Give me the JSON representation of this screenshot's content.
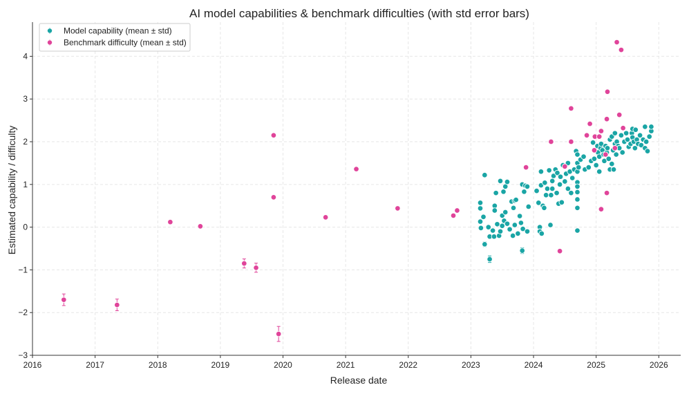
{
  "chart_data": {
    "type": "scatter",
    "title": "AI model capabilities & benchmark difficulties (with std error bars)",
    "xlabel": "Release date",
    "ylabel": "Estimated capability / difficulty",
    "xlim": [
      2016,
      2026.35
    ],
    "ylim": [
      -3,
      4.8
    ],
    "xticks": [
      2016,
      2017,
      2018,
      2019,
      2020,
      2021,
      2022,
      2023,
      2024,
      2025,
      2026
    ],
    "xtick_labels": [
      "2016",
      "2017",
      "2018",
      "2019",
      "2020",
      "2021",
      "2022",
      "2023",
      "2024",
      "2025",
      "2026"
    ],
    "yticks": [
      -3,
      -2,
      -1,
      0,
      1,
      2,
      3,
      4
    ],
    "ytick_labels": [
      "−3",
      "−2",
      "−1",
      "0",
      "1",
      "2",
      "3",
      "4"
    ],
    "grid": true,
    "legend_position": "top-left",
    "series": [
      {
        "name": "Model capability (mean ± std)",
        "color": "#1aa5a5",
        "points": [
          {
            "x": 2023.15,
            "y": 0.57,
            "err": 0.02
          },
          {
            "x": 2023.15,
            "y": 0.44,
            "err": 0.02
          },
          {
            "x": 2023.15,
            "y": 0.13,
            "err": 0.02
          },
          {
            "x": 2023.16,
            "y": -0.02,
            "err": 0.02
          },
          {
            "x": 2023.22,
            "y": 1.22,
            "err": 0.02
          },
          {
            "x": 2023.22,
            "y": -0.4,
            "err": 0.04
          },
          {
            "x": 2023.2,
            "y": 0.24,
            "err": 0.02
          },
          {
            "x": 2023.28,
            "y": 0.0,
            "err": 0.02
          },
          {
            "x": 2023.3,
            "y": -0.75,
            "err": 0.06
          },
          {
            "x": 2023.3,
            "y": -0.22,
            "err": 0.02
          },
          {
            "x": 2023.35,
            "y": -0.08,
            "err": 0.02
          },
          {
            "x": 2023.37,
            "y": -0.22,
            "err": 0.02
          },
          {
            "x": 2023.38,
            "y": 0.5,
            "err": 0.02
          },
          {
            "x": 2023.38,
            "y": 0.39,
            "err": 0.02
          },
          {
            "x": 2023.4,
            "y": 0.8,
            "err": 0.02
          },
          {
            "x": 2023.42,
            "y": 0.07,
            "err": 0.02
          },
          {
            "x": 2023.45,
            "y": -0.2,
            "err": 0.02
          },
          {
            "x": 2023.47,
            "y": 1.08,
            "err": 0.02
          },
          {
            "x": 2023.47,
            "y": -0.1,
            "err": 0.02
          },
          {
            "x": 2023.5,
            "y": 0.27,
            "err": 0.02
          },
          {
            "x": 2023.5,
            "y": 0.03,
            "err": 0.02
          },
          {
            "x": 2023.52,
            "y": 0.83,
            "err": 0.02
          },
          {
            "x": 2023.53,
            "y": 0.15,
            "err": 0.02
          },
          {
            "x": 2023.55,
            "y": 0.95,
            "err": 0.02
          },
          {
            "x": 2023.55,
            "y": 0.35,
            "err": 0.02
          },
          {
            "x": 2023.58,
            "y": 1.06,
            "err": 0.02
          },
          {
            "x": 2023.58,
            "y": 0.08,
            "err": 0.02
          },
          {
            "x": 2023.62,
            "y": -0.05,
            "err": 0.02
          },
          {
            "x": 2023.65,
            "y": 0.6,
            "err": 0.02
          },
          {
            "x": 2023.67,
            "y": -0.2,
            "err": 0.02
          },
          {
            "x": 2023.68,
            "y": 0.45,
            "err": 0.02
          },
          {
            "x": 2023.7,
            "y": 0.62,
            "err": 0.02
          },
          {
            "x": 2023.7,
            "y": 0.05,
            "err": 0.02
          },
          {
            "x": 2023.72,
            "y": 0.64,
            "err": 0.02
          },
          {
            "x": 2023.75,
            "y": -0.15,
            "err": 0.02
          },
          {
            "x": 2023.78,
            "y": 0.26,
            "err": 0.02
          },
          {
            "x": 2023.8,
            "y": 0.1,
            "err": 0.02
          },
          {
            "x": 2023.82,
            "y": 1.0,
            "err": 0.02
          },
          {
            "x": 2023.82,
            "y": -0.55,
            "err": 0.05
          },
          {
            "x": 2023.83,
            "y": -0.04,
            "err": 0.02
          },
          {
            "x": 2023.85,
            "y": 0.83,
            "err": 0.02
          },
          {
            "x": 2023.87,
            "y": 0.97,
            "err": 0.02
          },
          {
            "x": 2023.9,
            "y": 0.95,
            "err": 0.02
          },
          {
            "x": 2023.9,
            "y": -0.1,
            "err": 0.02
          },
          {
            "x": 2023.92,
            "y": 0.48,
            "err": 0.02
          },
          {
            "x": 2024.05,
            "y": 0.85,
            "err": 0.02
          },
          {
            "x": 2024.08,
            "y": 0.57,
            "err": 0.02
          },
          {
            "x": 2024.1,
            "y": 0.0,
            "err": 0.02
          },
          {
            "x": 2024.1,
            "y": -0.1,
            "err": 0.02
          },
          {
            "x": 2024.12,
            "y": 0.98,
            "err": 0.02
          },
          {
            "x": 2024.12,
            "y": 1.3,
            "err": 0.02
          },
          {
            "x": 2024.13,
            "y": -0.15,
            "err": 0.02
          },
          {
            "x": 2024.15,
            "y": 0.5,
            "err": 0.02
          },
          {
            "x": 2024.17,
            "y": 0.45,
            "err": 0.02
          },
          {
            "x": 2024.18,
            "y": 1.04,
            "err": 0.02
          },
          {
            "x": 2024.2,
            "y": 0.75,
            "err": 0.02
          },
          {
            "x": 2024.22,
            "y": 0.9,
            "err": 0.02
          },
          {
            "x": 2024.25,
            "y": 1.33,
            "err": 0.02
          },
          {
            "x": 2024.27,
            "y": 0.05,
            "err": 0.02
          },
          {
            "x": 2024.28,
            "y": 0.75,
            "err": 0.02
          },
          {
            "x": 2024.3,
            "y": 1.08,
            "err": 0.02
          },
          {
            "x": 2024.3,
            "y": 0.9,
            "err": 0.02
          },
          {
            "x": 2024.32,
            "y": 1.2,
            "err": 0.02
          },
          {
            "x": 2024.35,
            "y": 1.35,
            "err": 0.02
          },
          {
            "x": 2024.37,
            "y": 0.8,
            "err": 0.02
          },
          {
            "x": 2024.38,
            "y": 1.27,
            "err": 0.02
          },
          {
            "x": 2024.4,
            "y": 0.55,
            "err": 0.02
          },
          {
            "x": 2024.42,
            "y": 1.0,
            "err": 0.02
          },
          {
            "x": 2024.43,
            "y": 1.18,
            "err": 0.02
          },
          {
            "x": 2024.45,
            "y": 0.58,
            "err": 0.02
          },
          {
            "x": 2024.47,
            "y": 1.45,
            "err": 0.02
          },
          {
            "x": 2024.5,
            "y": 1.07,
            "err": 0.02
          },
          {
            "x": 2024.52,
            "y": 1.25,
            "err": 0.02
          },
          {
            "x": 2024.55,
            "y": 0.9,
            "err": 0.02
          },
          {
            "x": 2024.55,
            "y": 1.5,
            "err": 0.02
          },
          {
            "x": 2024.58,
            "y": 1.3,
            "err": 0.02
          },
          {
            "x": 2024.6,
            "y": 0.8,
            "err": 0.02
          },
          {
            "x": 2024.62,
            "y": 1.15,
            "err": 0.02
          },
          {
            "x": 2024.65,
            "y": 1.35,
            "err": 0.02
          },
          {
            "x": 2024.68,
            "y": 1.78,
            "err": 0.02
          },
          {
            "x": 2024.7,
            "y": 1.7,
            "err": 0.02
          },
          {
            "x": 2024.7,
            "y": 1.5,
            "err": 0.02
          },
          {
            "x": 2024.7,
            "y": 1.3,
            "err": 0.02
          },
          {
            "x": 2024.7,
            "y": 1.05,
            "err": 0.02
          },
          {
            "x": 2024.7,
            "y": 0.95,
            "err": 0.02
          },
          {
            "x": 2024.7,
            "y": 0.82,
            "err": 0.02
          },
          {
            "x": 2024.7,
            "y": 0.65,
            "err": 0.02
          },
          {
            "x": 2024.7,
            "y": 0.45,
            "err": 0.02
          },
          {
            "x": 2024.7,
            "y": -0.08,
            "err": 0.03
          },
          {
            "x": 2024.72,
            "y": 1.4,
            "err": 0.02
          },
          {
            "x": 2024.75,
            "y": 1.58,
            "err": 0.02
          },
          {
            "x": 2024.8,
            "y": 1.65,
            "err": 0.02
          },
          {
            "x": 2024.82,
            "y": 1.35,
            "err": 0.02
          },
          {
            "x": 2024.88,
            "y": 1.4,
            "err": 0.02
          },
          {
            "x": 2024.92,
            "y": 1.55,
            "err": 0.02
          },
          {
            "x": 2024.95,
            "y": 1.98,
            "err": 0.02
          },
          {
            "x": 2024.97,
            "y": 1.6,
            "err": 0.02
          },
          {
            "x": 2025.0,
            "y": 1.45,
            "err": 0.02
          },
          {
            "x": 2025.02,
            "y": 1.9,
            "err": 0.02
          },
          {
            "x": 2025.03,
            "y": 1.75,
            "err": 0.02
          },
          {
            "x": 2025.05,
            "y": 1.65,
            "err": 0.02
          },
          {
            "x": 2025.05,
            "y": 1.3,
            "err": 0.02
          },
          {
            "x": 2025.07,
            "y": 1.85,
            "err": 0.02
          },
          {
            "x": 2025.08,
            "y": 1.95,
            "err": 0.02
          },
          {
            "x": 2025.1,
            "y": 1.8,
            "err": 0.02
          },
          {
            "x": 2025.12,
            "y": 1.7,
            "err": 0.02
          },
          {
            "x": 2025.13,
            "y": 1.55,
            "err": 0.02
          },
          {
            "x": 2025.15,
            "y": 1.9,
            "err": 0.02
          },
          {
            "x": 2025.17,
            "y": 1.75,
            "err": 0.02
          },
          {
            "x": 2025.18,
            "y": 1.85,
            "err": 0.02
          },
          {
            "x": 2025.2,
            "y": 1.6,
            "err": 0.02
          },
          {
            "x": 2025.22,
            "y": 2.05,
            "err": 0.02
          },
          {
            "x": 2025.22,
            "y": 1.35,
            "err": 0.02
          },
          {
            "x": 2025.25,
            "y": 2.12,
            "err": 0.02
          },
          {
            "x": 2025.25,
            "y": 1.48,
            "err": 0.02
          },
          {
            "x": 2025.27,
            "y": 1.8,
            "err": 0.02
          },
          {
            "x": 2025.28,
            "y": 1.35,
            "err": 0.02
          },
          {
            "x": 2025.3,
            "y": 2.2,
            "err": 0.02
          },
          {
            "x": 2025.3,
            "y": 1.95,
            "err": 0.02
          },
          {
            "x": 2025.32,
            "y": 1.7,
            "err": 0.02
          },
          {
            "x": 2025.33,
            "y": 2.0,
            "err": 0.02
          },
          {
            "x": 2025.35,
            "y": 1.9,
            "err": 0.02
          },
          {
            "x": 2025.37,
            "y": 1.85,
            "err": 0.02
          },
          {
            "x": 2025.4,
            "y": 2.15,
            "err": 0.02
          },
          {
            "x": 2025.42,
            "y": 1.75,
            "err": 0.02
          },
          {
            "x": 2025.45,
            "y": 2.0,
            "err": 0.02
          },
          {
            "x": 2025.48,
            "y": 2.2,
            "err": 0.02
          },
          {
            "x": 2025.5,
            "y": 2.05,
            "err": 0.02
          },
          {
            "x": 2025.52,
            "y": 1.88,
            "err": 0.02
          },
          {
            "x": 2025.55,
            "y": 1.95,
            "err": 0.02
          },
          {
            "x": 2025.57,
            "y": 2.2,
            "err": 0.02
          },
          {
            "x": 2025.58,
            "y": 2.3,
            "err": 0.02
          },
          {
            "x": 2025.58,
            "y": 2.1,
            "err": 0.02
          },
          {
            "x": 2025.6,
            "y": 2.0,
            "err": 0.02
          },
          {
            "x": 2025.62,
            "y": 1.85,
            "err": 0.02
          },
          {
            "x": 2025.63,
            "y": 2.28,
            "err": 0.02
          },
          {
            "x": 2025.65,
            "y": 2.05,
            "err": 0.02
          },
          {
            "x": 2025.67,
            "y": 1.95,
            "err": 0.02
          },
          {
            "x": 2025.7,
            "y": 2.15,
            "err": 0.02
          },
          {
            "x": 2025.72,
            "y": 1.92,
            "err": 0.02
          },
          {
            "x": 2025.75,
            "y": 2.05,
            "err": 0.02
          },
          {
            "x": 2025.78,
            "y": 1.85,
            "err": 0.02
          },
          {
            "x": 2025.78,
            "y": 2.35,
            "err": 0.02
          },
          {
            "x": 2025.8,
            "y": 2.0,
            "err": 0.02
          },
          {
            "x": 2025.82,
            "y": 1.78,
            "err": 0.02
          },
          {
            "x": 2025.85,
            "y": 2.12,
            "err": 0.02
          },
          {
            "x": 2025.88,
            "y": 2.25,
            "err": 0.02
          },
          {
            "x": 2025.88,
            "y": 2.35,
            "err": 0.02
          }
        ]
      },
      {
        "name": "Benchmark difficulty (mean ± std)",
        "color": "#e0449a",
        "points": [
          {
            "x": 2016.5,
            "y": -1.7,
            "err": 0.12
          },
          {
            "x": 2017.35,
            "y": -1.82,
            "err": 0.12
          },
          {
            "x": 2018.2,
            "y": 0.12,
            "err": 0.03
          },
          {
            "x": 2018.68,
            "y": 0.02,
            "err": 0.03
          },
          {
            "x": 2019.38,
            "y": -0.85,
            "err": 0.09
          },
          {
            "x": 2019.57,
            "y": -0.95,
            "err": 0.09
          },
          {
            "x": 2019.85,
            "y": 0.7,
            "err": 0.02
          },
          {
            "x": 2019.85,
            "y": 2.15,
            "err": 0.02
          },
          {
            "x": 2019.93,
            "y": -2.5,
            "err": 0.16
          },
          {
            "x": 2020.68,
            "y": 0.23,
            "err": 0.02
          },
          {
            "x": 2021.17,
            "y": 1.36,
            "err": 0.02
          },
          {
            "x": 2021.83,
            "y": 0.44,
            "err": 0.02
          },
          {
            "x": 2022.72,
            "y": 0.27,
            "err": 0.02
          },
          {
            "x": 2022.78,
            "y": 0.39,
            "err": 0.02
          },
          {
            "x": 2023.88,
            "y": 1.4,
            "err": 0.02
          },
          {
            "x": 2024.28,
            "y": 2.0,
            "err": 0.02
          },
          {
            "x": 2024.42,
            "y": -0.56,
            "err": 0.02
          },
          {
            "x": 2024.5,
            "y": 1.42,
            "err": 0.02
          },
          {
            "x": 2024.6,
            "y": 2.0,
            "err": 0.02
          },
          {
            "x": 2024.6,
            "y": 2.78,
            "err": 0.02
          },
          {
            "x": 2024.85,
            "y": 2.15,
            "err": 0.02
          },
          {
            "x": 2024.9,
            "y": 2.42,
            "err": 0.02
          },
          {
            "x": 2024.97,
            "y": 1.8,
            "err": 0.02
          },
          {
            "x": 2024.98,
            "y": 2.12,
            "err": 0.02
          },
          {
            "x": 2025.05,
            "y": 2.12,
            "err": 0.02
          },
          {
            "x": 2025.08,
            "y": 2.25,
            "err": 0.02
          },
          {
            "x": 2025.08,
            "y": 0.42,
            "err": 0.02
          },
          {
            "x": 2025.15,
            "y": 1.7,
            "err": 0.02
          },
          {
            "x": 2025.17,
            "y": 0.8,
            "err": 0.02
          },
          {
            "x": 2025.17,
            "y": 2.53,
            "err": 0.02
          },
          {
            "x": 2025.18,
            "y": 3.17,
            "err": 0.02
          },
          {
            "x": 2025.3,
            "y": 1.85,
            "err": 0.02
          },
          {
            "x": 2025.33,
            "y": 4.33,
            "err": 0.02
          },
          {
            "x": 2025.37,
            "y": 2.63,
            "err": 0.02
          },
          {
            "x": 2025.4,
            "y": 4.15,
            "err": 0.02
          },
          {
            "x": 2025.43,
            "y": 2.32,
            "err": 0.02
          }
        ]
      }
    ]
  }
}
